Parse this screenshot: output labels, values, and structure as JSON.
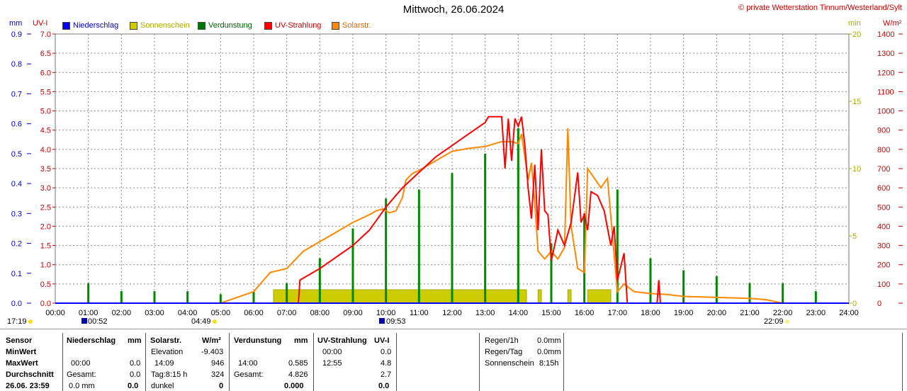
{
  "header": {
    "title": "Mittwoch, 26.06.2024",
    "credit": "© private Wetterstation Tinnum/Westerland/Sylt"
  },
  "axes_units": {
    "mm": "mm",
    "uvi": "UV-I",
    "min": "min",
    "wm2": "W/m²"
  },
  "legend": [
    {
      "label": "Niederschlag",
      "color": "#0000ff"
    },
    {
      "label": "Sonnenschein",
      "color": "#cccc00"
    },
    {
      "label": "Verdunstung",
      "color": "#007700"
    },
    {
      "label": "UV-Strahlung",
      "color": "#ff0000"
    },
    {
      "label": "Solarstr.",
      "color": "#ff8800"
    }
  ],
  "chart_data": {
    "type": "line",
    "x_ticks": [
      "00:00",
      "01:00",
      "02:00",
      "03:00",
      "04:00",
      "05:00",
      "06:00",
      "07:00",
      "08:00",
      "09:00",
      "10:00",
      "11:00",
      "12:00",
      "13:00",
      "14:00",
      "15:00",
      "16:00",
      "17:00",
      "18:00",
      "19:00",
      "20:00",
      "21:00",
      "22:00",
      "23:00",
      "24:00"
    ],
    "mm_ticks": [
      "0.0",
      "0.1",
      "0.2",
      "0.3",
      "0.4",
      "0.5",
      "0.6",
      "0.7",
      "0.8",
      "0.9"
    ],
    "uvi_ticks": [
      "0.0",
      "0.5",
      "1.0",
      "1.5",
      "2.0",
      "2.5",
      "3.0",
      "3.5",
      "4.0",
      "4.5",
      "5.0",
      "5.5",
      "6.0",
      "6.5",
      "7.0"
    ],
    "min_ticks": [
      "0",
      "5",
      "10",
      "15",
      "20"
    ],
    "wm2_ticks": [
      "0",
      "100",
      "200",
      "300",
      "400",
      "500",
      "600",
      "700",
      "800",
      "900",
      "1000",
      "1100",
      "1200",
      "1300",
      "1400"
    ],
    "ranges": {
      "x_hours": [
        0,
        24
      ],
      "uvi": [
        0,
        7
      ],
      "mm": [
        0,
        0.9
      ],
      "min": [
        0,
        20
      ],
      "wm2": [
        0,
        1400
      ]
    },
    "solar_wm2": [
      [
        5.0,
        0
      ],
      [
        6.0,
        60
      ],
      [
        6.5,
        160
      ],
      [
        7.0,
        180
      ],
      [
        7.5,
        270
      ],
      [
        8.0,
        320
      ],
      [
        8.5,
        370
      ],
      [
        9.0,
        420
      ],
      [
        9.5,
        460
      ],
      [
        9.7,
        480
      ],
      [
        9.9,
        490
      ],
      [
        10.1,
        470
      ],
      [
        10.3,
        480
      ],
      [
        10.5,
        550
      ],
      [
        10.6,
        640
      ],
      [
        10.8,
        675
      ],
      [
        11.0,
        690
      ],
      [
        11.5,
        740
      ],
      [
        12.0,
        790
      ],
      [
        12.5,
        805
      ],
      [
        13.0,
        815
      ],
      [
        13.3,
        830
      ],
      [
        13.5,
        840
      ],
      [
        13.8,
        840
      ],
      [
        14.0,
        830
      ],
      [
        14.1,
        880
      ],
      [
        14.3,
        640
      ],
      [
        14.4,
        730
      ],
      [
        14.5,
        520
      ],
      [
        14.6,
        270
      ],
      [
        14.8,
        230
      ],
      [
        15.0,
        270
      ],
      [
        15.2,
        230
      ],
      [
        15.4,
        290
      ],
      [
        15.5,
        910
      ],
      [
        15.6,
        400
      ],
      [
        15.8,
        180
      ],
      [
        16.0,
        160
      ],
      [
        16.1,
        700
      ],
      [
        16.3,
        650
      ],
      [
        16.5,
        600
      ],
      [
        16.7,
        650
      ],
      [
        16.9,
        250
      ],
      [
        17.0,
        60
      ],
      [
        17.2,
        100
      ],
      [
        17.5,
        60
      ],
      [
        18.0,
        50
      ],
      [
        18.5,
        45
      ],
      [
        19.0,
        35
      ],
      [
        20.0,
        30
      ],
      [
        21.0,
        25
      ],
      [
        21.5,
        18
      ],
      [
        22.0,
        0
      ]
    ],
    "uv_index": [
      [
        7.35,
        0
      ],
      [
        7.4,
        0.6
      ],
      [
        8.0,
        0.9
      ],
      [
        9.0,
        1.5
      ],
      [
        9.5,
        1.9
      ],
      [
        10.0,
        2.5
      ],
      [
        10.5,
        3.0
      ],
      [
        11.0,
        3.4
      ],
      [
        11.5,
        3.8
      ],
      [
        12.0,
        4.1
      ],
      [
        12.5,
        4.4
      ],
      [
        13.0,
        4.7
      ],
      [
        13.1,
        4.85
      ],
      [
        13.5,
        4.85
      ],
      [
        13.6,
        3.5
      ],
      [
        13.7,
        4.8
      ],
      [
        13.8,
        3.7
      ],
      [
        13.9,
        4.8
      ],
      [
        14.0,
        4.6
      ],
      [
        14.1,
        4.85
      ],
      [
        14.2,
        4.1
      ],
      [
        14.3,
        3.0
      ],
      [
        14.4,
        2.2
      ],
      [
        14.5,
        3.6
      ],
      [
        14.6,
        1.9
      ],
      [
        14.7,
        4.0
      ],
      [
        14.8,
        2.4
      ],
      [
        14.9,
        2.3
      ],
      [
        15.0,
        1.1
      ],
      [
        15.2,
        1.9
      ],
      [
        15.4,
        1.5
      ],
      [
        15.6,
        2.1
      ],
      [
        15.8,
        3.4
      ],
      [
        15.9,
        2.1
      ],
      [
        16.0,
        2.3
      ],
      [
        16.1,
        1.9
      ],
      [
        16.2,
        2.9
      ],
      [
        16.4,
        2.8
      ],
      [
        16.6,
        2.4
      ],
      [
        16.8,
        1.5
      ],
      [
        16.9,
        2.0
      ],
      [
        17.0,
        0.6
      ],
      [
        17.2,
        1.3
      ],
      [
        17.3,
        0
      ],
      [
        18.2,
        0
      ],
      [
        18.25,
        0.6
      ],
      [
        18.3,
        0
      ]
    ],
    "evaporation_bars_mm": [
      [
        1.0,
        0.067
      ],
      [
        2.0,
        0.04
      ],
      [
        3.0,
        0.04
      ],
      [
        4.0,
        0.04
      ],
      [
        5.0,
        0.03
      ],
      [
        6.0,
        0.04
      ],
      [
        7.0,
        0.067
      ],
      [
        8.0,
        0.15
      ],
      [
        9.0,
        0.25
      ],
      [
        10.0,
        0.35
      ],
      [
        11.0,
        0.38
      ],
      [
        12.0,
        0.435
      ],
      [
        13.0,
        0.5
      ],
      [
        14.0,
        0.585
      ],
      [
        15.0,
        0.2
      ],
      [
        16.0,
        0.3
      ],
      [
        17.0,
        0.38
      ],
      [
        18.0,
        0.15
      ],
      [
        19.0,
        0.11
      ],
      [
        20.0,
        0.09
      ],
      [
        21.0,
        0.067
      ],
      [
        22.0,
        0.067
      ],
      [
        23.0,
        0.04
      ]
    ],
    "sunshine_intervals_hours": [
      [
        6.6,
        14.25
      ],
      [
        14.6,
        14.7
      ],
      [
        15.5,
        15.6
      ],
      [
        16.1,
        16.8
      ]
    ],
    "sun_events": {
      "dawn": "17:19",
      "civil_begin": "00:52",
      "sunrise": "04:49",
      "noon": "09:53",
      "sunset": "22:09"
    }
  },
  "table": {
    "col_sensor": [
      "Sensor",
      "MinWert",
      "MaxWert",
      "Durchschnitt",
      "26.06. 23:59"
    ],
    "niederschlag": {
      "header": "Niederschlag",
      "unit": "mm",
      "max_time": "00:00",
      "max_val": "0.0",
      "avg_label": "Gesamt:",
      "avg_val": "0.0",
      "cur_unit": "0.0 mm",
      "cur_val": "0.0"
    },
    "solar": {
      "header": "Solarstr.",
      "unit": "W/m²",
      "min_label": "Elevation",
      "min_val": "-9.403",
      "max_time": "14:09",
      "max_val": "946",
      "avg_label": "Tag:8:15 h",
      "avg_val": "324",
      "cur_label": "dunkel",
      "cur_val": "0"
    },
    "verdunstung": {
      "header": "Verdunstung",
      "unit": "mm",
      "max_time": "14:00",
      "max_val": "0.585",
      "avg_label": "Gesamt:",
      "avg_val": "4.826",
      "cur_val": "0.000"
    },
    "uv": {
      "header": "UV-Strahlung",
      "unit": "UV-I",
      "min_time": "00:00",
      "min_val": "0.0",
      "max_time": "12:55",
      "max_val": "4.8",
      "avg_val": "2.7",
      "cur_val": "0.0"
    },
    "summary": [
      {
        "label": "Regen/1h",
        "value": "0.0mm"
      },
      {
        "label": "Regen/Tag",
        "value": "0.0mm"
      },
      {
        "label": "Sonnenschein",
        "value": "8:15h"
      }
    ]
  }
}
